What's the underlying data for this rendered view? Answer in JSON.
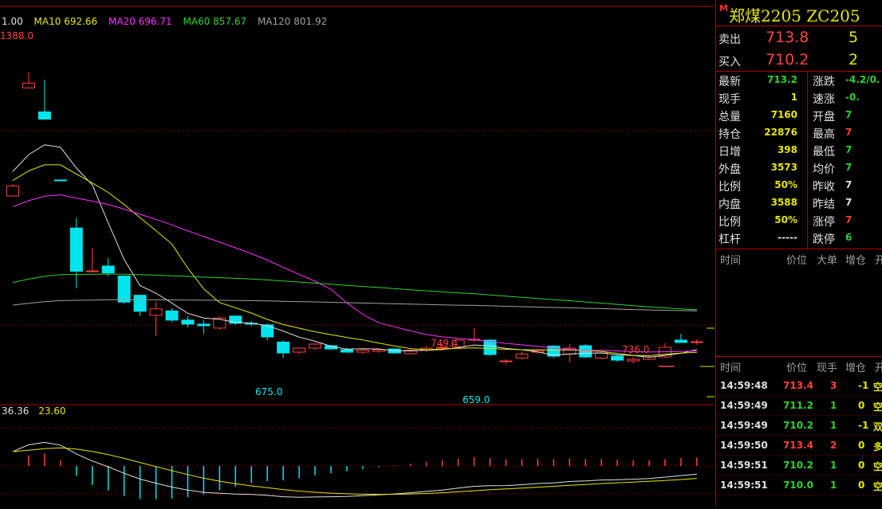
{
  "ma_legend": {
    "ma5": {
      "label": "1.00",
      "color": "#e0e0e0"
    },
    "ma10": {
      "label": "MA10 692.66",
      "color": "#e6e600"
    },
    "ma20": {
      "label": "MA20 696.71",
      "color": "#ff30ff"
    },
    "ma60": {
      "label": "MA60 857.67",
      "color": "#30d030"
    },
    "ma120": {
      "label": "MA120 801.92",
      "color": "#a0a0a0"
    }
  },
  "macd_legend": {
    "diff": "36.36",
    "dea": "23.60"
  },
  "price_labels": {
    "high1": "1388.0",
    "low1": "675.0",
    "high2": "749.4",
    "low2": "659.0",
    "high3": "736.0"
  },
  "chart_data": {
    "type": "candlestick",
    "series_colors": {
      "up": "#ff4040",
      "down": "#00e5ee"
    },
    "candles": [
      {
        "o": 1080,
        "h": 1110,
        "l": 1080,
        "c": 1105
      },
      {
        "o": 1350,
        "h": 1388,
        "l": 1350,
        "c": 1362
      },
      {
        "o": 1290,
        "h": 1370,
        "l": 1270,
        "c": 1272
      },
      {
        "o": 1120,
        "h": 1120,
        "l": 1118,
        "c": 1119
      },
      {
        "o": 1000,
        "h": 1025,
        "l": 850,
        "c": 892
      },
      {
        "o": 892,
        "h": 950,
        "l": 892,
        "c": 893
      },
      {
        "o": 905,
        "h": 925,
        "l": 880,
        "c": 888
      },
      {
        "o": 880,
        "h": 880,
        "l": 810,
        "c": 815
      },
      {
        "o": 832,
        "h": 832,
        "l": 780,
        "c": 792
      },
      {
        "o": 782,
        "h": 815,
        "l": 730,
        "c": 798
      },
      {
        "o": 793,
        "h": 800,
        "l": 765,
        "c": 770
      },
      {
        "o": 770,
        "h": 780,
        "l": 752,
        "c": 760
      },
      {
        "o": 760,
        "h": 770,
        "l": 735,
        "c": 756
      },
      {
        "o": 750,
        "h": 780,
        "l": 745,
        "c": 775
      },
      {
        "o": 780,
        "h": 782,
        "l": 758,
        "c": 762
      },
      {
        "o": 762,
        "h": 768,
        "l": 755,
        "c": 760
      },
      {
        "o": 758,
        "h": 762,
        "l": 720,
        "c": 728
      },
      {
        "o": 715,
        "h": 720,
        "l": 675,
        "c": 688
      },
      {
        "o": 690,
        "h": 702,
        "l": 685,
        "c": 700
      },
      {
        "o": 700,
        "h": 712,
        "l": 695,
        "c": 710
      },
      {
        "o": 706,
        "h": 708,
        "l": 695,
        "c": 698
      },
      {
        "o": 696,
        "h": 700,
        "l": 688,
        "c": 690
      },
      {
        "o": 690,
        "h": 698,
        "l": 686,
        "c": 695
      },
      {
        "o": 692,
        "h": 700,
        "l": 688,
        "c": 696
      },
      {
        "o": 698,
        "h": 698,
        "l": 686,
        "c": 688
      },
      {
        "o": 686,
        "h": 698,
        "l": 684,
        "c": 695
      },
      {
        "o": 695,
        "h": 705,
        "l": 690,
        "c": 700
      },
      {
        "o": 700,
        "h": 712,
        "l": 695,
        "c": 702
      },
      {
        "o": 703,
        "h": 722,
        "l": 700,
        "c": 720
      },
      {
        "o": 720,
        "h": 749.4,
        "l": 715,
        "c": 722
      },
      {
        "o": 720,
        "h": 722,
        "l": 680,
        "c": 684
      },
      {
        "o": 668,
        "h": 672,
        "l": 659,
        "c": 668
      },
      {
        "o": 675,
        "h": 692,
        "l": 672,
        "c": 685
      },
      {
        "o": 690,
        "h": 698,
        "l": 685,
        "c": 694
      },
      {
        "o": 705,
        "h": 708,
        "l": 675,
        "c": 680
      },
      {
        "o": 685,
        "h": 710,
        "l": 665,
        "c": 700
      },
      {
        "o": 706,
        "h": 710,
        "l": 675,
        "c": 678
      },
      {
        "o": 675,
        "h": 690,
        "l": 672,
        "c": 688
      },
      {
        "o": 680,
        "h": 683,
        "l": 666,
        "c": 670
      },
      {
        "o": 668,
        "h": 678,
        "l": 662,
        "c": 672
      },
      {
        "o": 672,
        "h": 682,
        "l": 670,
        "c": 678
      },
      {
        "o": 678,
        "h": 712,
        "l": 676,
        "c": 702
      },
      {
        "o": 720,
        "h": 736,
        "l": 716,
        "c": 714
      },
      {
        "o": 714,
        "h": 722,
        "l": 708,
        "c": 716
      }
    ]
  },
  "panel": {
    "title": "郑煤2205  ZC205",
    "sell": {
      "label": "卖出",
      "price": "713.8",
      "vol": "5"
    },
    "buy": {
      "label": "买入",
      "price": "710.2",
      "vol": "2"
    },
    "stats": [
      {
        "k1": "最新",
        "v1": "713.2",
        "c1": "#30d030",
        "k2": "涨跌",
        "v2": "-4.2/0.",
        "c2": "#30d030"
      },
      {
        "k1": "现手",
        "v1": "1",
        "c1": "#e6e600",
        "k2": "速涨",
        "v2": "-0.",
        "c2": "#30d030"
      },
      {
        "k1": "总量",
        "v1": "7160",
        "c1": "#e6e600",
        "k2": "开盘",
        "v2": "7",
        "c2": "#30d030"
      },
      {
        "k1": "持仓",
        "v1": "22876",
        "c1": "#e6e600",
        "k2": "最高",
        "v2": "7",
        "c2": "#ff4040"
      },
      {
        "k1": "日增",
        "v1": "398",
        "c1": "#e6e600",
        "k2": "最低",
        "v2": "7",
        "c2": "#30d030"
      },
      {
        "k1": "外盘",
        "v1": "3573",
        "c1": "#e6e600",
        "k2": "均价",
        "v2": "7",
        "c2": "#30d030"
      },
      {
        "k1": "比例",
        "v1": "50%",
        "c1": "#e6e600",
        "k2": "昨收",
        "v2": "7",
        "c2": "#e0e0e0"
      },
      {
        "k1": "内盘",
        "v1": "3588",
        "c1": "#e6e600",
        "k2": "昨结",
        "v2": "7",
        "c2": "#e0e0e0"
      },
      {
        "k1": "比例",
        "v1": "50%",
        "c1": "#e6e600",
        "k2": "涨停",
        "v2": "7",
        "c2": "#ff4040"
      },
      {
        "k1": "杠杆",
        "v1": "-----",
        "c1": "#e0e0e0",
        "k2": "跌停",
        "v2": "6",
        "c2": "#30d030"
      }
    ],
    "header1": {
      "time": "时间",
      "price": "价位",
      "big": "大单",
      "inc": "增仓",
      "open": "开"
    },
    "header2": {
      "time": "时间",
      "price": "价位",
      "hand": "现手",
      "inc": "增仓",
      "open": "开"
    },
    "ticks": [
      {
        "time": "14:59:48",
        "price": "713.4",
        "pc": "#ff4040",
        "hand": "3",
        "hc": "#ff4040",
        "inc": "-1",
        "type": "空"
      },
      {
        "time": "14:59:49",
        "price": "711.2",
        "pc": "#30d030",
        "hand": "1",
        "hc": "#30d030",
        "inc": "0",
        "type": "空"
      },
      {
        "time": "14:59:49",
        "price": "710.2",
        "pc": "#30d030",
        "hand": "1",
        "hc": "#30d030",
        "inc": "-1",
        "type": "双"
      },
      {
        "time": "14:59:50",
        "price": "713.4",
        "pc": "#ff4040",
        "hand": "2",
        "hc": "#ff4040",
        "inc": "0",
        "type": "多"
      },
      {
        "time": "14:59:51",
        "price": "710.2",
        "pc": "#30d030",
        "hand": "1",
        "hc": "#30d030",
        "inc": "0",
        "type": "空"
      },
      {
        "time": "14:59:51",
        "price": "710.0",
        "pc": "#30d030",
        "hand": "1",
        "hc": "#30d030",
        "inc": "0",
        "type": "空"
      }
    ]
  }
}
